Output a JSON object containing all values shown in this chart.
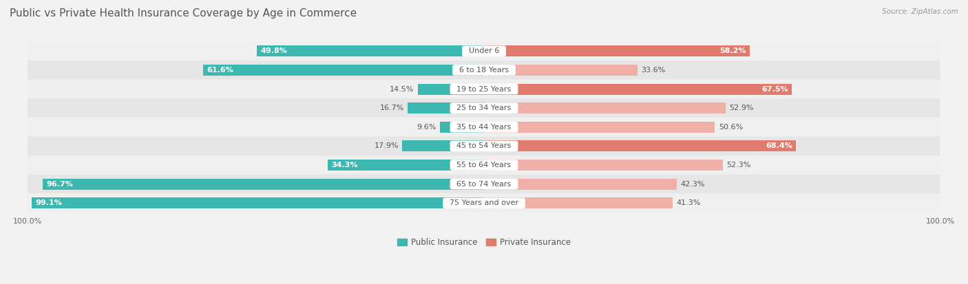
{
  "title": "Public vs Private Health Insurance Coverage by Age in Commerce",
  "source": "Source: ZipAtlas.com",
  "categories": [
    "Under 6",
    "6 to 18 Years",
    "19 to 25 Years",
    "25 to 34 Years",
    "35 to 44 Years",
    "45 to 54 Years",
    "55 to 64 Years",
    "65 to 74 Years",
    "75 Years and over"
  ],
  "public_values": [
    49.8,
    61.6,
    14.5,
    16.7,
    9.6,
    17.9,
    34.3,
    96.7,
    99.1
  ],
  "private_values": [
    58.2,
    33.6,
    67.5,
    52.9,
    50.6,
    68.4,
    52.3,
    42.3,
    41.3
  ],
  "public_color": "#3db8b0",
  "private_color_high": "#e07b6e",
  "private_color_low": "#f0b0a8",
  "public_color_low": "#3db8b0",
  "private_threshold": 55,
  "row_colors": [
    "#f0f0f0",
    "#e8e8e8"
  ],
  "max_value": 100.0,
  "title_fontsize": 11,
  "label_fontsize": 8,
  "category_fontsize": 8,
  "legend_fontsize": 8.5,
  "footer_fontsize": 8
}
